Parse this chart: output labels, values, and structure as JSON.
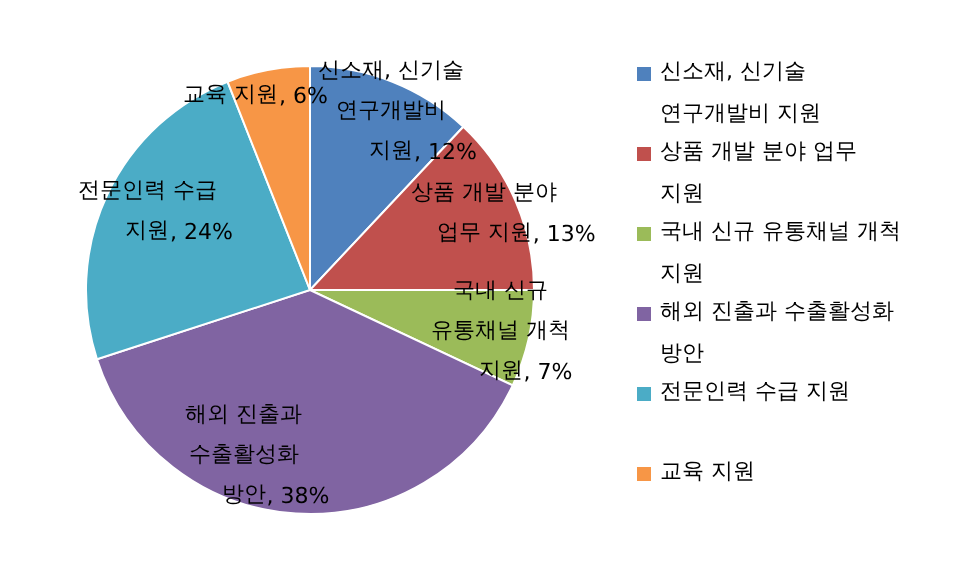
{
  "chart_data": {
    "type": "pie",
    "categories": [
      "신소재, 신기술 연구개발비 지원",
      "상품 개발 분야 업무 지원",
      "국내 신규 유통채널 개척 지원",
      "해외 진출과 수출활성화 방안",
      "전문인력 수급 지원",
      "교육 지원"
    ],
    "values": [
      12,
      13,
      7,
      38,
      24,
      6
    ],
    "colors": [
      "#4f81bd",
      "#c0504d",
      "#9bbb59",
      "#8064a2",
      "#4bacc6",
      "#f79646"
    ],
    "value_labels": [
      ", 12%",
      ", 13%",
      ", 7%",
      ", 38%",
      ", 24%",
      ", 6%"
    ],
    "legend": "right"
  }
}
